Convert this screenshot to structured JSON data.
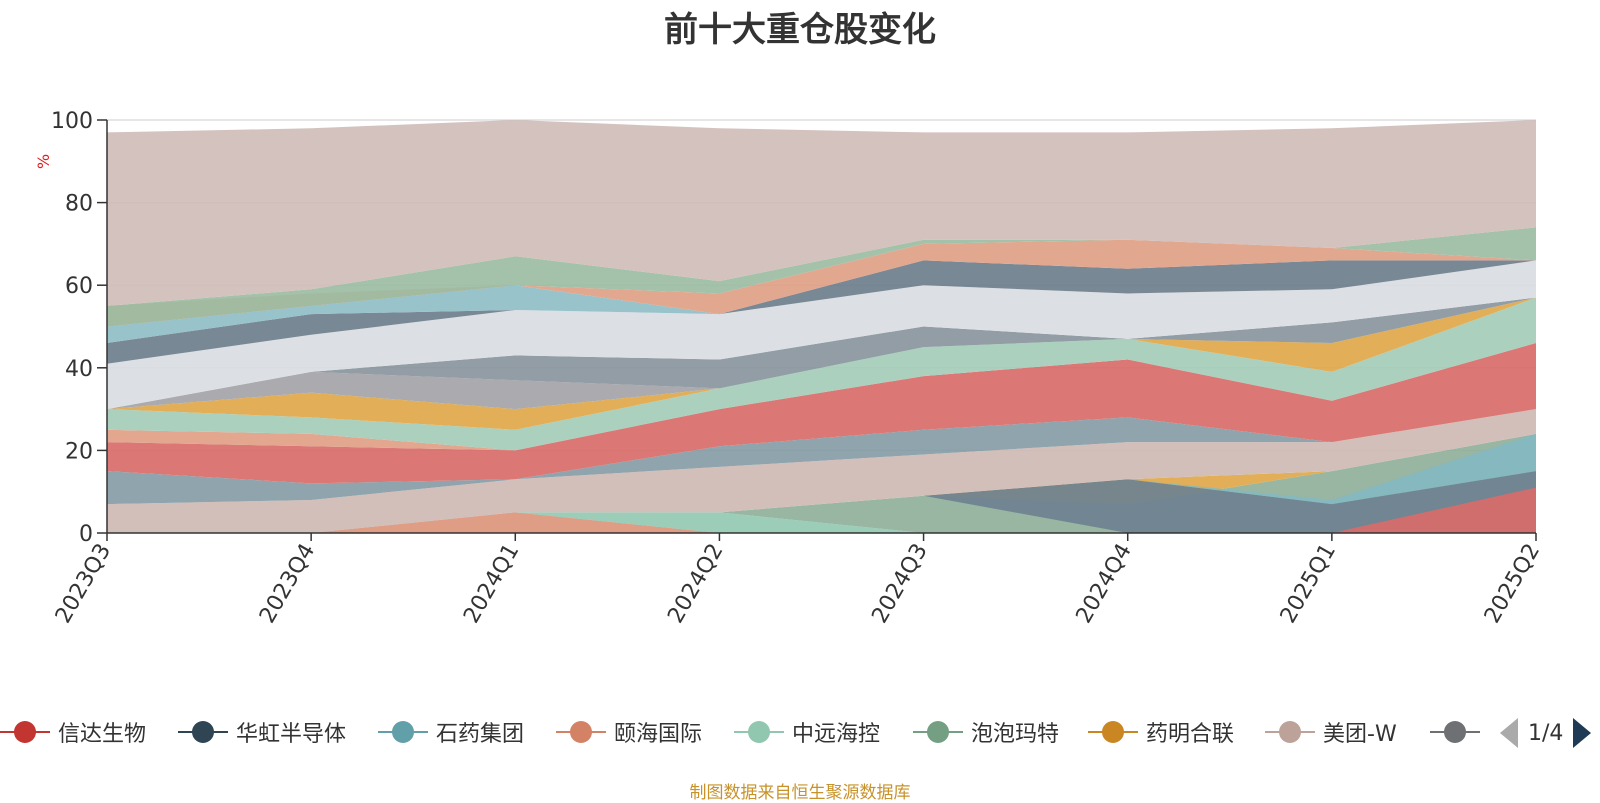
{
  "chart_data": {
    "type": "area",
    "title": "前十大重仓股变化",
    "ylabel": "%",
    "ylim": [
      0,
      100
    ],
    "yticks": [
      "0",
      "20",
      "40",
      "60",
      "80",
      "100"
    ],
    "categories": [
      "2023Q3",
      "2023Q4",
      "2024Q1",
      "2024Q2",
      "2024Q3",
      "2024Q4",
      "2025Q1",
      "2025Q2"
    ],
    "grid": true,
    "legend_position": "bottom",
    "bands": [
      {
        "color": "#c4ada6",
        "top": [
          0,
          0,
          5,
          0,
          0,
          0,
          0,
          0
        ],
        "bottom": [
          0,
          0,
          0,
          0,
          0,
          0,
          0,
          0
        ]
      },
      {
        "color": "#e09b80",
        "top": [
          0,
          0,
          5,
          0,
          0,
          0,
          0,
          0
        ],
        "bottom": [
          0,
          0,
          0,
          0,
          0,
          0,
          0,
          0
        ]
      },
      {
        "color": "#93c9b3",
        "top": [
          0,
          0,
          5,
          5,
          0,
          0,
          0,
          0
        ],
        "bottom": [
          0,
          0,
          5,
          0,
          0,
          0,
          0,
          0
        ]
      },
      {
        "color": "#8fb09a",
        "top": [
          0,
          0,
          5,
          5,
          9,
          7,
          15,
          24
        ],
        "bottom": [
          0,
          0,
          5,
          5,
          0,
          0,
          0,
          0
        ]
      },
      {
        "color": "#e0a84a",
        "top": [
          0,
          0,
          5,
          5,
          9,
          13,
          15,
          24
        ],
        "bottom": [
          0,
          0,
          5,
          5,
          9,
          7,
          15,
          24
        ]
      },
      {
        "color": "#6e8290",
        "top": [
          0,
          0,
          5,
          5,
          9,
          13,
          7,
          15
        ],
        "bottom": [
          0,
          0,
          5,
          5,
          9,
          0,
          0,
          0
        ]
      },
      {
        "color": "#83b9c1",
        "top": [
          0,
          0,
          5,
          5,
          9,
          13,
          8,
          24
        ],
        "bottom": [
          0,
          0,
          5,
          5,
          9,
          13,
          7,
          15
        ]
      },
      {
        "color": "#d86c6a",
        "top": [
          0,
          0,
          5,
          5,
          9,
          13,
          0,
          11
        ],
        "bottom": [
          0,
          0,
          5,
          5,
          9,
          13,
          0,
          0
        ]
      },
      {
        "color": "#cfbab4",
        "top": [
          7,
          8,
          13,
          16,
          19,
          22,
          22,
          30
        ],
        "bottom": [
          0,
          0,
          5,
          5,
          9,
          13,
          15,
          24
        ]
      },
      {
        "color": "#859ca6",
        "top": [
          15,
          12,
          13,
          21,
          25,
          28,
          22,
          30
        ],
        "bottom": [
          7,
          8,
          13,
          16,
          19,
          22,
          22,
          30
        ]
      },
      {
        "color": "#d86c6a",
        "top": [
          22,
          21,
          20,
          30,
          38,
          42,
          32,
          46
        ],
        "bottom": [
          15,
          12,
          13,
          21,
          25,
          28,
          22,
          30
        ]
      },
      {
        "color": "#e0a084",
        "top": [
          25,
          24,
          20,
          30,
          38,
          42,
          32,
          46
        ],
        "bottom": [
          22,
          21,
          20,
          30,
          38,
          42,
          32,
          46
        ]
      },
      {
        "color": "#a4cdb8",
        "top": [
          30,
          28,
          25,
          35,
          45,
          47,
          39,
          57
        ],
        "bottom": [
          25,
          24,
          20,
          30,
          38,
          42,
          32,
          46
        ]
      },
      {
        "color": "#e0a84a",
        "top": [
          30,
          34,
          30,
          35,
          45,
          47,
          46,
          57
        ],
        "bottom": [
          30,
          28,
          25,
          35,
          45,
          47,
          39,
          57
        ]
      },
      {
        "color": "#a3a3a8",
        "top": [
          30,
          39,
          37,
          35,
          45,
          47,
          46,
          57
        ],
        "bottom": [
          30,
          34,
          30,
          35,
          45,
          47,
          46,
          57
        ]
      },
      {
        "color": "#89959d",
        "top": [
          30,
          39,
          43,
          42,
          50,
          47,
          51,
          57
        ],
        "bottom": [
          30,
          39,
          37,
          35,
          45,
          47,
          46,
          57
        ]
      },
      {
        "color": "#d9dde3",
        "top": [
          41,
          48,
          54,
          53,
          60,
          58,
          59,
          66
        ],
        "bottom": [
          30,
          39,
          43,
          42,
          50,
          47,
          51,
          57
        ]
      },
      {
        "color": "#6e7e8c",
        "top": [
          46,
          53,
          54,
          53,
          66,
          64,
          66,
          66
        ],
        "bottom": [
          41,
          48,
          54,
          53,
          60,
          58,
          59,
          66
        ]
      },
      {
        "color": "#8fbec6",
        "top": [
          50,
          55,
          60,
          53,
          66,
          64,
          66,
          66
        ],
        "bottom": [
          46,
          53,
          54,
          53,
          66,
          64,
          66,
          66
        ]
      },
      {
        "color": "#e0a086",
        "top": [
          55,
          58,
          60,
          58,
          70,
          71,
          69,
          66
        ],
        "bottom": [
          50,
          55,
          60,
          53,
          66,
          64,
          66,
          66
        ]
      },
      {
        "color": "#9cbca2",
        "top": [
          55,
          59,
          67,
          61,
          71,
          71,
          69,
          74
        ],
        "bottom": [
          50,
          55,
          60,
          58,
          70,
          71,
          69,
          66
        ]
      },
      {
        "color": "#cfbdb8",
        "top": [
          97,
          98,
          100,
          98,
          97,
          97,
          98,
          100
        ],
        "bottom": [
          55,
          59,
          67,
          61,
          71,
          71,
          69,
          74
        ]
      }
    ],
    "series": [
      {
        "name": "信达生物",
        "color": "#c23531"
      },
      {
        "name": "华虹半导体",
        "color": "#2f4554"
      },
      {
        "name": "石药集团",
        "color": "#61a0a8"
      },
      {
        "name": "颐海国际",
        "color": "#d48265"
      },
      {
        "name": "中远海控",
        "color": "#91c7ae"
      },
      {
        "name": "泡泡玛特",
        "color": "#749f83"
      },
      {
        "name": "药明合联",
        "color": "#ca8622"
      },
      {
        "name": "美团-W",
        "color": "#bda29a"
      },
      {
        "name": "",
        "color": "#6e7074"
      }
    ]
  },
  "legend": {
    "page": "1/4"
  },
  "footer": {
    "source": "制图数据来自恒生聚源数据库"
  }
}
